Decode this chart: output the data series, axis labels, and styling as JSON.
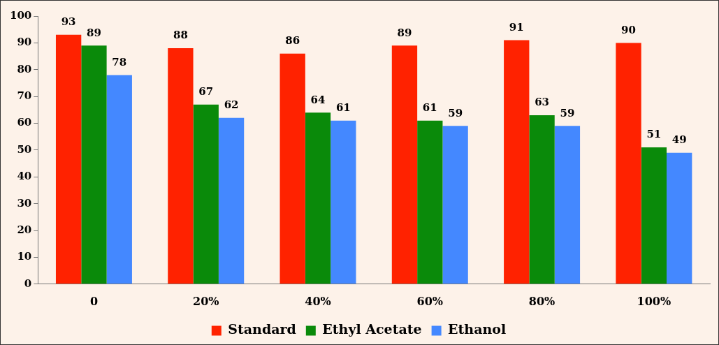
{
  "chart_data": {
    "type": "bar",
    "categories": [
      "0",
      "20%",
      "40%",
      "60%",
      "80%",
      "100%"
    ],
    "series": [
      {
        "name": "Standard",
        "color": "#ff2200",
        "values": [
          93,
          88,
          86,
          89,
          91,
          90
        ]
      },
      {
        "name": "Ethyl Acetate",
        "color": "#0a8a0a",
        "values": [
          89,
          67,
          64,
          61,
          63,
          51
        ]
      },
      {
        "name": "Ethanol",
        "color": "#4488ff",
        "values": [
          78,
          62,
          61,
          59,
          59,
          49
        ]
      }
    ],
    "ylim": [
      0,
      100
    ],
    "yticks": [
      0,
      10,
      20,
      30,
      40,
      50,
      60,
      70,
      80,
      90,
      100
    ],
    "grid": false,
    "legend": "bottom",
    "data_labels": true
  }
}
